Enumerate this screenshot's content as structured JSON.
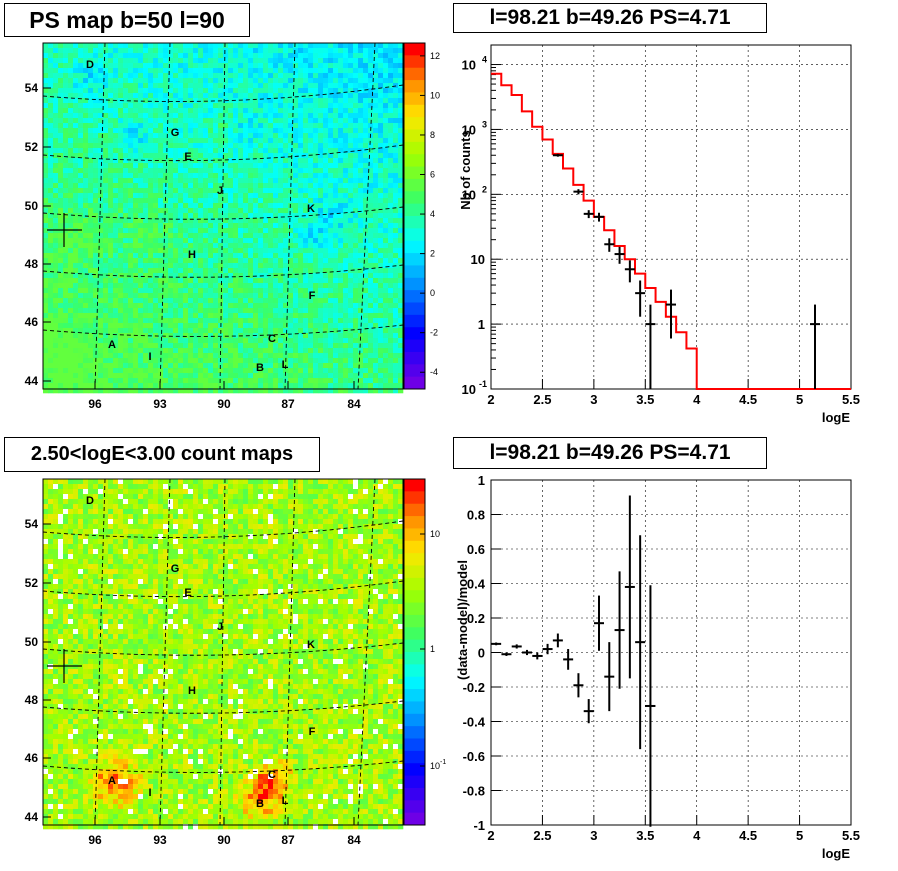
{
  "titles": {
    "ps_map": "PS map b=50 l=90",
    "spectrum": "l=98.21 b=49.26 PS=4.71",
    "count_map": "2.50<logE<3.00 count maps",
    "residual": "l=98.21 b=49.26 PS=4.71"
  },
  "maps": {
    "lat_ticks": [
      "54",
      "52",
      "50",
      "48",
      "46",
      "44"
    ],
    "lon_ticks": [
      "96",
      "93",
      "90",
      "87",
      "84"
    ],
    "sources": [
      "D",
      "G",
      "E",
      "J",
      "K",
      "H",
      "F",
      "C",
      "A",
      "I",
      "B",
      "L"
    ],
    "ps_colorbar_ticks": [
      "12",
      "10",
      "8",
      "6",
      "4",
      "2",
      "0",
      "-2",
      "-4"
    ],
    "count_colorbar_ticks": [
      "10",
      "1",
      "10",
      "-1"
    ]
  },
  "chart_data": [
    {
      "type": "step",
      "xlabel": "logE",
      "ylabel": "Nb of counts",
      "xlim": [
        2,
        5.5
      ],
      "ylim": [
        0.1,
        20000
      ],
      "yscale": "log",
      "grid": true,
      "x_ticks": [
        "2",
        "2.5",
        "3",
        "3.5",
        "4",
        "4.5",
        "5",
        "5.5"
      ],
      "y_ticks": [
        {
          "base": "10",
          "exp": "4",
          "v": 10000
        },
        {
          "base": "10",
          "exp": "3",
          "v": 1000
        },
        {
          "base": "10",
          "exp": "2",
          "v": 100
        },
        {
          "base": "10",
          "exp": "",
          "v": 10
        },
        {
          "base": "1",
          "exp": "",
          "v": 1
        },
        {
          "base": "10",
          "exp": "-1",
          "v": 0.1
        }
      ],
      "model_edges": [
        2,
        2.1,
        2.2,
        2.3,
        2.4,
        2.5,
        2.6,
        2.7,
        2.8,
        2.9,
        3.0,
        3.1,
        3.2,
        3.3,
        3.4,
        3.5,
        3.6,
        3.7,
        3.8,
        3.9,
        4.0,
        5.5
      ],
      "model_values": [
        7200,
        4800,
        3400,
        1900,
        1100,
        700,
        420,
        250,
        140,
        80,
        45,
        28,
        16,
        10,
        6,
        3.6,
        2.2,
        1.3,
        0.75,
        0.42,
        0.1
      ],
      "data_points": [
        {
          "x": 2.65,
          "y": 400,
          "lo": 380,
          "hi": 420
        },
        {
          "x": 2.85,
          "y": 110,
          "lo": 100,
          "hi": 120
        },
        {
          "x": 2.95,
          "y": 50,
          "lo": 43,
          "hi": 57
        },
        {
          "x": 3.05,
          "y": 45,
          "lo": 38,
          "hi": 52
        },
        {
          "x": 3.15,
          "y": 17,
          "lo": 13,
          "hi": 21
        },
        {
          "x": 3.25,
          "y": 12,
          "lo": 8.5,
          "hi": 15.5
        },
        {
          "x": 3.35,
          "y": 7,
          "lo": 4.4,
          "hi": 9.6
        },
        {
          "x": 3.45,
          "y": 3,
          "lo": 1.3,
          "hi": 4.7
        },
        {
          "x": 3.55,
          "y": 1,
          "lo": 0.05,
          "hi": 2
        },
        {
          "x": 3.75,
          "y": 2,
          "lo": 0.6,
          "hi": 3.4
        },
        {
          "x": 5.15,
          "y": 1,
          "lo": 0.05,
          "hi": 2
        }
      ]
    },
    {
      "type": "scatter",
      "xlabel": "logE",
      "ylabel": "(data-model)/model",
      "xlim": [
        2,
        5.5
      ],
      "ylim": [
        -1,
        1
      ],
      "grid": true,
      "x_ticks": [
        "2",
        "2.5",
        "3",
        "3.5",
        "4",
        "4.5",
        "5",
        "5.5"
      ],
      "y_ticks": [
        "1",
        "0.8",
        "0.6",
        "0.4",
        "0.2",
        "0",
        "-0.2",
        "-0.4",
        "-0.6",
        "-0.8",
        "-1"
      ],
      "points": [
        {
          "x": 2.05,
          "y": 0.05,
          "err": 0.008
        },
        {
          "x": 2.15,
          "y": -0.01,
          "err": 0.01
        },
        {
          "x": 2.25,
          "y": 0.035,
          "err": 0.012
        },
        {
          "x": 2.35,
          "y": 0.0,
          "err": 0.015
        },
        {
          "x": 2.45,
          "y": -0.02,
          "err": 0.02
        },
        {
          "x": 2.55,
          "y": 0.02,
          "err": 0.03
        },
        {
          "x": 2.65,
          "y": 0.07,
          "err": 0.04
        },
        {
          "x": 2.75,
          "y": -0.04,
          "err": 0.06
        },
        {
          "x": 2.85,
          "y": -0.19,
          "err": 0.07
        },
        {
          "x": 2.95,
          "y": -0.34,
          "err": 0.07
        },
        {
          "x": 3.05,
          "y": 0.17,
          "err": 0.16
        },
        {
          "x": 3.15,
          "y": -0.14,
          "err": 0.2
        },
        {
          "x": 3.25,
          "y": 0.13,
          "err": 0.34
        },
        {
          "x": 3.35,
          "y": 0.38,
          "err": 0.53
        },
        {
          "x": 3.45,
          "y": 0.06,
          "err": 0.62
        },
        {
          "x": 3.55,
          "y": -0.31,
          "err": 0.7
        }
      ]
    }
  ]
}
